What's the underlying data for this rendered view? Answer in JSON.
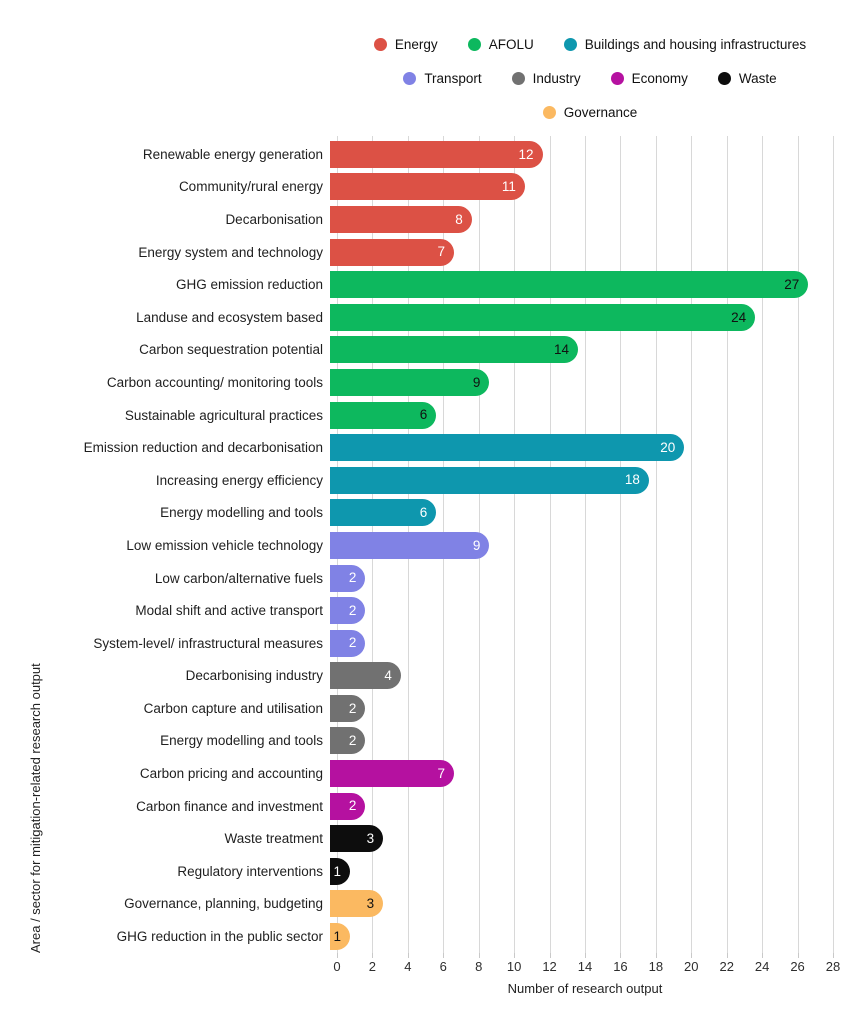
{
  "legend": {
    "rows": [
      [
        "Energy",
        "AFOLU",
        "Buildings and housing infrastructures"
      ],
      [
        "Transport",
        "Industry",
        "Economy",
        "Waste"
      ],
      [
        "Governance"
      ]
    ]
  },
  "chart_data": {
    "type": "bar",
    "orientation": "horizontal",
    "title": "",
    "xlabel": "Number of research output",
    "ylabel": "Area / sector for mitigation-related research output",
    "xlim": [
      0,
      28
    ],
    "xticks": [
      0,
      2,
      4,
      6,
      8,
      10,
      12,
      14,
      16,
      18,
      20,
      22,
      24,
      26,
      28
    ],
    "grid": true,
    "gridline_color": "#d8d8d8",
    "legend_position": "top-center",
    "sectors": [
      {
        "name": "Energy",
        "color": "#dc5145",
        "value_text_color": "#ffffff"
      },
      {
        "name": "AFOLU",
        "color": "#0db85e",
        "value_text_color": "#111111"
      },
      {
        "name": "Buildings and housing infrastructures",
        "color": "#0e97ae",
        "value_text_color": "#ffffff"
      },
      {
        "name": "Transport",
        "color": "#8082e5",
        "value_text_color": "#ffffff"
      },
      {
        "name": "Industry",
        "color": "#717171",
        "value_text_color": "#ffffff"
      },
      {
        "name": "Economy",
        "color": "#b511a0",
        "value_text_color": "#ffffff"
      },
      {
        "name": "Waste",
        "color": "#0d0d0d",
        "value_text_color": "#ffffff"
      },
      {
        "name": "Governance",
        "color": "#fbb961",
        "value_text_color": "#111111"
      }
    ],
    "bars": [
      {
        "category": "Renewable energy generation",
        "value": 12,
        "sector": "Energy"
      },
      {
        "category": "Community/rural energy",
        "value": 11,
        "sector": "Energy"
      },
      {
        "category": "Decarbonisation",
        "value": 8,
        "sector": "Energy"
      },
      {
        "category": "Energy system and technology",
        "value": 7,
        "sector": "Energy"
      },
      {
        "category": "GHG emission reduction",
        "value": 27,
        "sector": "AFOLU"
      },
      {
        "category": "Landuse and ecosystem based",
        "value": 24,
        "sector": "AFOLU"
      },
      {
        "category": "Carbon sequestration potential",
        "value": 14,
        "sector": "AFOLU"
      },
      {
        "category": "Carbon accounting/ monitoring tools",
        "value": 9,
        "sector": "AFOLU"
      },
      {
        "category": "Sustainable agricultural practices",
        "value": 6,
        "sector": "AFOLU"
      },
      {
        "category": "Emission reduction and decarbonisation",
        "value": 20,
        "sector": "Buildings and housing infrastructures"
      },
      {
        "category": "Increasing energy efficiency",
        "value": 18,
        "sector": "Buildings and housing infrastructures"
      },
      {
        "category": "Energy modelling and tools",
        "value": 6,
        "sector": "Buildings and housing infrastructures"
      },
      {
        "category": "Low emission vehicle technology",
        "value": 9,
        "sector": "Transport"
      },
      {
        "category": "Low carbon/alternative fuels",
        "value": 2,
        "sector": "Transport"
      },
      {
        "category": "Modal shift and active transport",
        "value": 2,
        "sector": "Transport"
      },
      {
        "category": "System-level/ infrastructural measures",
        "value": 2,
        "sector": "Transport"
      },
      {
        "category": "Decarbonising industry",
        "value": 4,
        "sector": "Industry"
      },
      {
        "category": "Carbon capture and utilisation",
        "value": 2,
        "sector": "Industry"
      },
      {
        "category": "Energy modelling and tools",
        "value": 2,
        "sector": "Industry"
      },
      {
        "category": "Carbon pricing and accounting",
        "value": 7,
        "sector": "Economy"
      },
      {
        "category": "Carbon finance and investment",
        "value": 2,
        "sector": "Economy"
      },
      {
        "category": "Waste treatment",
        "value": 3,
        "sector": "Waste"
      },
      {
        "category": "Regulatory interventions",
        "value": 1,
        "sector": "Waste"
      },
      {
        "category": "Governance, planning, budgeting",
        "value": 3,
        "sector": "Governance"
      },
      {
        "category": "GHG reduction in the public sector",
        "value": 1,
        "sector": "Governance"
      }
    ]
  }
}
